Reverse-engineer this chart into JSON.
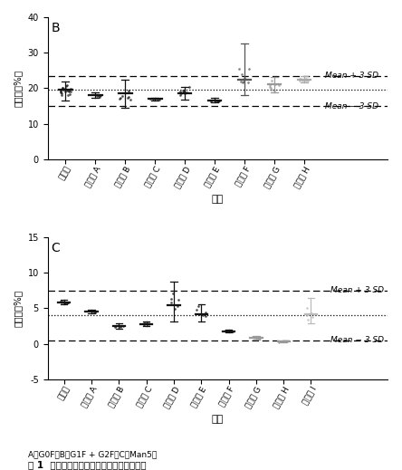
{
  "panel_B": {
    "label": "B",
    "categories": [
      "参照药",
      "候选药 A",
      "候选药 B",
      "候选药 C",
      "候选药 D",
      "候选药 E",
      "候选药 F",
      "候选药 G",
      "候选药 H"
    ],
    "means": [
      19.5,
      18.0,
      18.5,
      17.0,
      18.5,
      16.5,
      22.5,
      21.0,
      22.5
    ],
    "errors_pos": [
      2.5,
      0.7,
      4.0,
      0.4,
      1.8,
      0.8,
      10.0,
      2.2,
      0.8
    ],
    "errors_neg": [
      3.0,
      0.7,
      4.0,
      0.4,
      1.8,
      0.5,
      4.5,
      2.2,
      0.8
    ],
    "scatter_means": [
      19.5,
      18.0,
      18.5,
      17.0,
      18.5,
      16.5,
      22.5,
      21.0,
      22.5
    ],
    "scatter_spreads": [
      1.8,
      0.4,
      2.5,
      0.3,
      1.2,
      0.4,
      5.0,
      1.8,
      0.7
    ],
    "scatter_n": [
      20,
      5,
      8,
      6,
      8,
      6,
      8,
      8,
      8
    ],
    "mean_line": 19.5,
    "mean_plus_3sd": 23.5,
    "mean_minus_3sd": 15.0,
    "ylim": [
      0,
      40
    ],
    "yticks": [
      0,
      10,
      20,
      30,
      40
    ],
    "ylabel": "糖含量（%）",
    "xlabel": "类别",
    "mean_plus_label": "Mean + 3 SD",
    "mean_minus_label": "Mean − 3 SD",
    "scatter_colors": [
      "#111111",
      "#111111",
      "#111111",
      "#111111",
      "#111111",
      "#111111",
      "#555555",
      "#999999",
      "#aaaaaa"
    ],
    "error_colors": [
      "#111111",
      "#111111",
      "#111111",
      "#111111",
      "#111111",
      "#111111",
      "#555555",
      "#999999",
      "#aaaaaa"
    ]
  },
  "panel_C": {
    "label": "C",
    "categories": [
      "参照药",
      "候选药 A",
      "候选药 B",
      "候选药 C",
      "候选药 D",
      "候选药 E",
      "候选药 F",
      "候选药 G",
      "候选药 H",
      "候选药 I"
    ],
    "means": [
      5.8,
      4.5,
      2.5,
      2.8,
      5.5,
      4.2,
      1.8,
      0.8,
      0.3,
      4.2
    ],
    "errors_pos": [
      0.35,
      0.25,
      0.45,
      0.35,
      3.2,
      1.4,
      0.25,
      0.25,
      0.15,
      2.3
    ],
    "errors_neg": [
      0.25,
      0.25,
      0.35,
      0.35,
      2.3,
      1.1,
      0.25,
      0.15,
      0.15,
      1.3
    ],
    "scatter_means": [
      5.8,
      4.5,
      2.5,
      2.8,
      5.5,
      4.2,
      1.8,
      0.8,
      0.3,
      4.2
    ],
    "scatter_spreads": [
      0.25,
      0.15,
      0.25,
      0.25,
      1.8,
      0.9,
      0.15,
      0.15,
      0.12,
      1.2
    ],
    "scatter_n": [
      10,
      3,
      5,
      5,
      6,
      6,
      5,
      8,
      8,
      5
    ],
    "mean_line": 4.0,
    "mean_plus_3sd": 7.5,
    "mean_minus_3sd": 0.5,
    "ylim": [
      -5,
      15
    ],
    "yticks": [
      -5,
      0,
      5,
      10,
      15
    ],
    "ylabel": "糖含量（%）",
    "xlabel": "类别",
    "mean_plus_label": "Mean + 3 SD",
    "mean_minus_label": "Mean − 3 SD",
    "scatter_colors": [
      "#111111",
      "#111111",
      "#111111",
      "#111111",
      "#111111",
      "#111111",
      "#111111",
      "#999999",
      "#999999",
      "#bbbbbb"
    ],
    "error_colors": [
      "#111111",
      "#111111",
      "#111111",
      "#111111",
      "#111111",
      "#111111",
      "#111111",
      "#999999",
      "#999999",
      "#bbbbbb"
    ]
  },
  "figure_caption": "图 1  阿达木单抗参照药和候选药的糖型含量",
  "footnote": "A：G0F；B：G1F + G2F；C：Man5。",
  "background_color": "#ffffff"
}
